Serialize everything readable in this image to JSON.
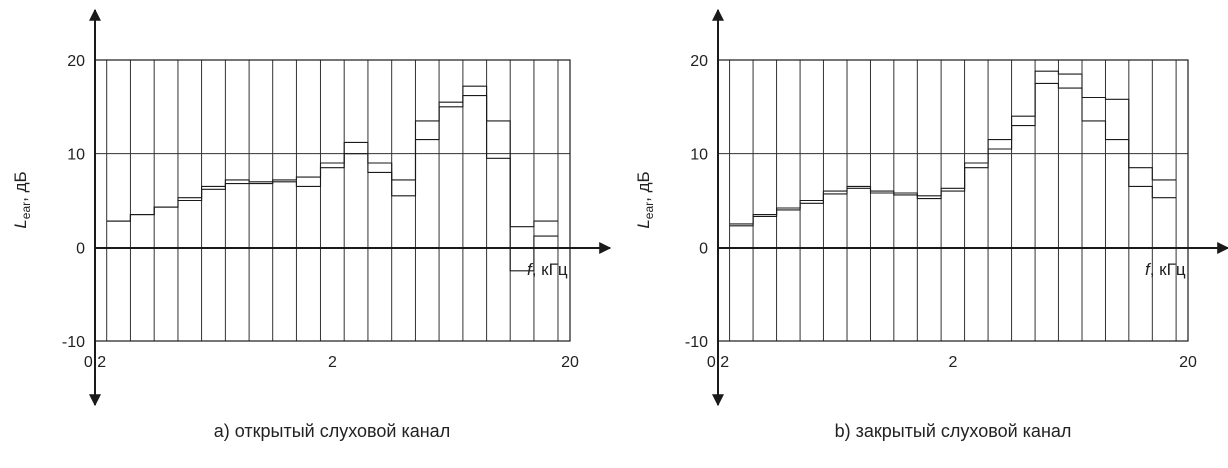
{
  "colors": {
    "ink": "#1a1a1a",
    "frame": "#333333",
    "grid": "#333333"
  },
  "chart_data": [
    {
      "type": "line",
      "xscale": "log",
      "xlim": [
        0.2,
        20
      ],
      "ylim": [
        -10,
        20
      ],
      "xticks": [
        "0,2",
        "2",
        "20"
      ],
      "yticks": [
        "20",
        "10",
        "0",
        "-10"
      ],
      "xlabel_var": "f",
      "xlabel_unit": ", кГц",
      "ylabel_var": "L",
      "ylabel_sub": "ear",
      "ylabel_unit": ", дБ",
      "caption": "a) открытый слуховой канал",
      "band_edges": [
        0.224,
        0.282,
        0.355,
        0.447,
        0.562,
        0.708,
        0.891,
        1.12,
        1.41,
        1.78,
        2.24,
        2.82,
        3.55,
        4.47,
        5.62,
        7.08,
        8.91,
        11.2,
        14.1,
        17.8
      ],
      "series": [
        {
          "values": [
            2.8,
            3.5,
            4.3,
            5.3,
            6.5,
            7.2,
            7.0,
            7.2,
            7.5,
            9.0,
            11.2,
            9.0,
            7.2,
            13.5,
            15.5,
            17.2,
            13.5,
            2.2,
            2.8
          ]
        },
        {
          "values": [
            2.8,
            3.5,
            4.3,
            5.0,
            6.2,
            6.8,
            6.8,
            7.0,
            6.5,
            8.5,
            10.0,
            8.0,
            5.5,
            11.5,
            15.0,
            16.2,
            9.5,
            -2.5,
            1.2
          ]
        }
      ]
    },
    {
      "type": "line",
      "xscale": "log",
      "xlim": [
        0.2,
        20
      ],
      "ylim": [
        -10,
        20
      ],
      "xticks": [
        "0,2",
        "2",
        "20"
      ],
      "yticks": [
        "20",
        "10",
        "0",
        "-10"
      ],
      "xlabel_var": "f",
      "xlabel_unit": ", кГц",
      "ylabel_var": "L",
      "ylabel_sub": "ear",
      "ylabel_unit": ", дБ",
      "caption": "b) закрытый слуховой канал",
      "band_edges": [
        0.224,
        0.282,
        0.355,
        0.447,
        0.562,
        0.708,
        0.891,
        1.12,
        1.41,
        1.78,
        2.24,
        2.82,
        3.55,
        4.47,
        5.62,
        7.08,
        8.91,
        11.2,
        14.1,
        17.8
      ],
      "series": [
        {
          "values": [
            2.5,
            3.5,
            4.2,
            5.0,
            6.0,
            6.5,
            6.0,
            5.8,
            5.5,
            6.3,
            9.0,
            11.5,
            14.0,
            18.8,
            18.5,
            16.0,
            15.8,
            8.5,
            7.2
          ]
        },
        {
          "values": [
            2.3,
            3.3,
            4.0,
            4.7,
            5.7,
            6.3,
            5.8,
            5.6,
            5.2,
            6.0,
            8.5,
            10.5,
            13.0,
            17.5,
            17.0,
            13.5,
            11.5,
            6.5,
            5.3
          ]
        }
      ]
    }
  ]
}
